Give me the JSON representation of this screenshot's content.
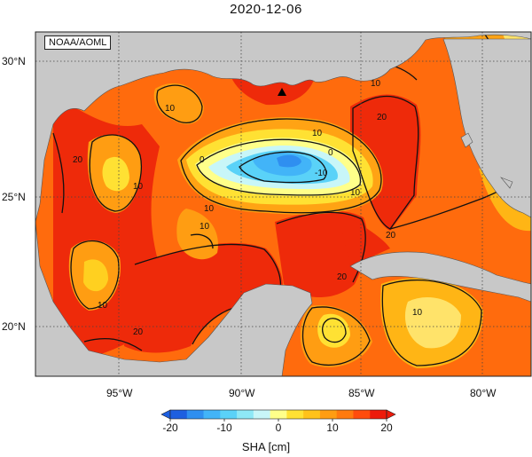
{
  "title": "2020-12-06",
  "credit": "NOAA/AOML",
  "lat_labels": [
    "30°N",
    "25°N",
    "20°N"
  ],
  "lon_labels": [
    "95°W",
    "90°W",
    "85°W",
    "80°W"
  ],
  "contour_labels": [
    "0",
    "0",
    "-10",
    "10",
    "10",
    "10",
    "10",
    "10",
    "10",
    "10",
    "10",
    "20",
    "20",
    "20",
    "20",
    "20",
    "10"
  ],
  "colorbar": {
    "ticks": [
      "-20",
      "-10",
      "0",
      "10",
      "20"
    ],
    "label": "SHA [cm]",
    "colors": [
      "#1d5fe0",
      "#2f8ff0",
      "#42b4f8",
      "#5ad2f8",
      "#8ee8f6",
      "#c8f6f8",
      "#ffff8a",
      "#ffe133",
      "#ffc21a",
      "#ff9d12",
      "#ff7a0e",
      "#ff4c0c",
      "#ee1a0a"
    ]
  },
  "land_color": "#c8c8c8",
  "marker": "triangle-marker"
}
